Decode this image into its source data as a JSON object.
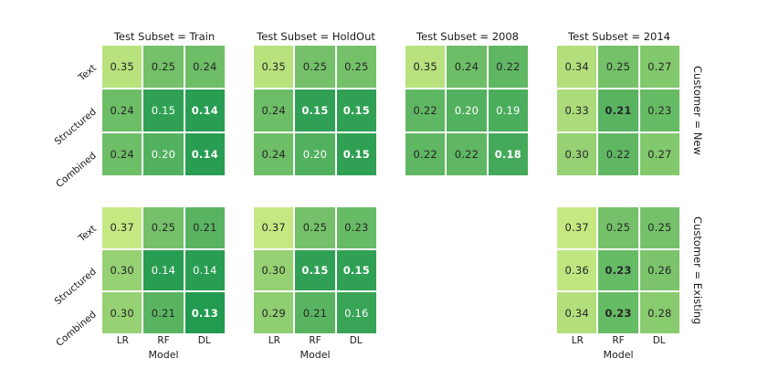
{
  "figure": {
    "col_titles": [
      "Test Subset = Train",
      "Test Subset = HoldOut",
      "Test Subset = 2008",
      "Test Subset = 2014"
    ],
    "row_titles": [
      "Customer = New",
      "Customer = Existing"
    ],
    "y_ticklabels": [
      "Text",
      "Structured",
      "Combined"
    ],
    "x_ticklabels": [
      "LR",
      "RF",
      "DL"
    ],
    "x_axis_label": "Model"
  },
  "chart_data": {
    "type": "heatmap",
    "facet_col_variable": "Test Subset",
    "facet_row_variable": "Customer",
    "facet_cols": [
      "Train",
      "HoldOut",
      "2008",
      "2014"
    ],
    "facet_rows": [
      "New",
      "Existing"
    ],
    "x": [
      "LR",
      "RF",
      "DL"
    ],
    "y": [
      "Text",
      "Structured",
      "Combined"
    ],
    "xlabel": "Model",
    "annotation_format": "0.00",
    "bold_rule": "minimum value within each facet is bold",
    "missing_facets": [
      {
        "row": "Existing",
        "col": "2008"
      }
    ],
    "facets": [
      {
        "row": "New",
        "col": "Train",
        "values": [
          [
            0.35,
            0.25,
            0.24
          ],
          [
            0.24,
            0.15,
            0.14
          ],
          [
            0.24,
            0.2,
            0.14
          ]
        ]
      },
      {
        "row": "New",
        "col": "HoldOut",
        "values": [
          [
            0.35,
            0.25,
            0.25
          ],
          [
            0.24,
            0.15,
            0.15
          ],
          [
            0.24,
            0.2,
            0.15
          ]
        ]
      },
      {
        "row": "New",
        "col": "2008",
        "values": [
          [
            0.35,
            0.24,
            0.22
          ],
          [
            0.22,
            0.2,
            0.19
          ],
          [
            0.22,
            0.22,
            0.18
          ]
        ]
      },
      {
        "row": "New",
        "col": "2014",
        "values": [
          [
            0.34,
            0.25,
            0.27
          ],
          [
            0.33,
            0.21,
            0.23
          ],
          [
            0.3,
            0.22,
            0.27
          ]
        ]
      },
      {
        "row": "Existing",
        "col": "Train",
        "values": [
          [
            0.37,
            0.25,
            0.21
          ],
          [
            0.3,
            0.14,
            0.14
          ],
          [
            0.3,
            0.21,
            0.13
          ]
        ]
      },
      {
        "row": "Existing",
        "col": "HoldOut",
        "values": [
          [
            0.37,
            0.25,
            0.23
          ],
          [
            0.3,
            0.15,
            0.15
          ],
          [
            0.29,
            0.21,
            0.16
          ]
        ]
      },
      {
        "row": "Existing",
        "col": "2014",
        "values": [
          [
            0.37,
            0.25,
            0.25
          ],
          [
            0.36,
            0.23,
            0.26
          ],
          [
            0.34,
            0.23,
            0.28
          ]
        ]
      }
    ],
    "colormap": {
      "vmin": 0.13,
      "vmax": 0.37,
      "color_min": "#229a50",
      "color_max": "#c6e882",
      "text_dark": "#262626",
      "text_light": "#ffffff",
      "white_text_threshold": 0.205
    }
  }
}
